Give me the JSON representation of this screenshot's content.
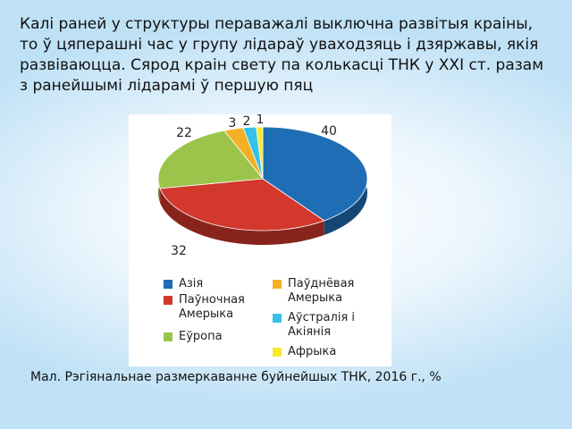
{
  "text": "Калі раней у структуры пераважалі выключна развітыя краіны, то ў цяперашні час у групу лідараў уваходзяць і дзяржавы, якія развіваюцца. Сярод краін свету па колькасці ТНК у ХХІ ст. разам з ранейшымі лідарамі ў першую пяц",
  "caption": "Мал. Рэгіянальнае размеркаванне буйнейшых ТНК, 2016 г., %",
  "chart_data": {
    "type": "pie",
    "categories": [
      "Азія",
      "Паўночная Амерыка",
      "Еўропа",
      "Паўднёвая Амерыка",
      "Аўстралія і Акіянія",
      "Афрыка"
    ],
    "values": [
      40,
      32,
      22,
      3,
      2,
      1
    ],
    "colors": [
      "#1f6db5",
      "#d2382b",
      "#9bc54a",
      "#f3b024",
      "#36c1ea",
      "#f6ea2a"
    ]
  }
}
